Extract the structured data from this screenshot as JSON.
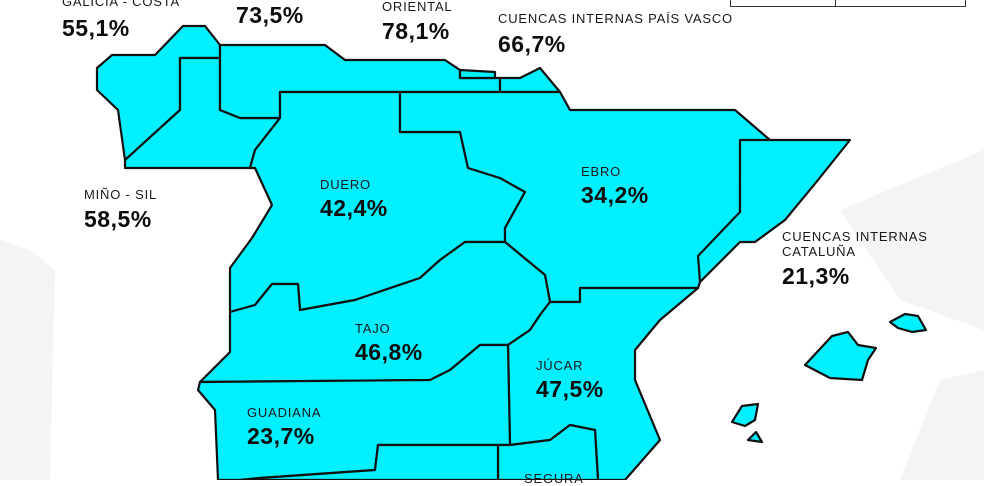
{
  "map": {
    "fill_color": "#00f0ff",
    "stroke_color": "#111111",
    "regions": [
      {
        "id": "galicia-costa",
        "name": "GALICIA - COSTA",
        "value": "55,1%"
      },
      {
        "id": "cantabrico-occidental",
        "name": "",
        "value": "73,5%"
      },
      {
        "id": "cantabrico-oriental",
        "name": "ORIENTAL",
        "value": "78,1%"
      },
      {
        "id": "pais-vasco",
        "name": "CUENCAS INTERNAS PAÍS VASCO",
        "value": "66,7%"
      },
      {
        "id": "mino-sil",
        "name": "MIÑO - SIL",
        "value": "58,5%"
      },
      {
        "id": "duero",
        "name": "DUERO",
        "value": "42,4%"
      },
      {
        "id": "ebro",
        "name": "EBRO",
        "value": "34,2%"
      },
      {
        "id": "cataluna",
        "name_line1": "CUENCAS INTERNAS",
        "name_line2": "CATALUÑA",
        "value": "21,3%"
      },
      {
        "id": "tajo",
        "name": "TAJO",
        "value": "46,8%"
      },
      {
        "id": "jucar",
        "name": "JÚCAR",
        "value": "47,5%"
      },
      {
        "id": "guadiana",
        "name": "GUADIANA",
        "value": "23,7%"
      },
      {
        "id": "segura",
        "name": "SEGURA",
        "value": ""
      }
    ]
  }
}
